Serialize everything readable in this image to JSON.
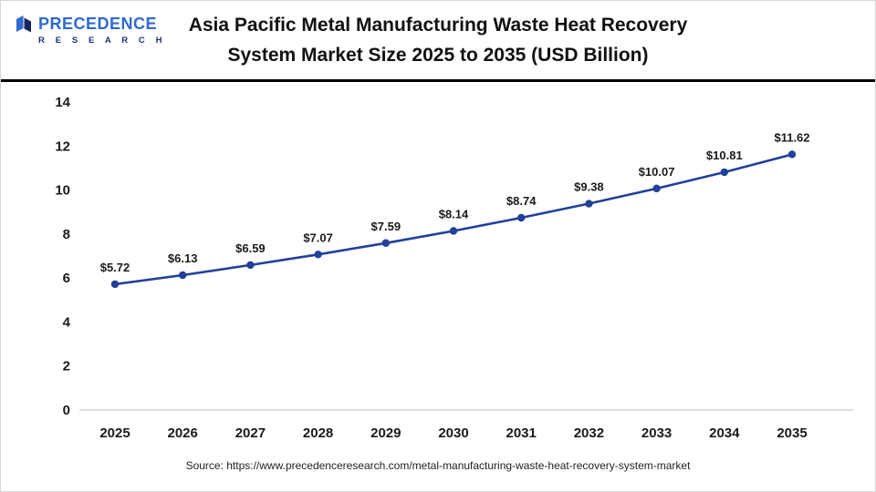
{
  "header": {
    "logo": {
      "name": "PRECEDENCE",
      "sub": "R E S E A R C H"
    },
    "title_line1": "Asia Pacific Metal Manufacturing Waste Heat Recovery",
    "title_line2": "System Market Size 2025 to 2035 (USD Billion)"
  },
  "chart_data": {
    "type": "line",
    "title": "Asia Pacific Metal Manufacturing Waste Heat Recovery System Market Size 2025 to 2035 (USD Billion)",
    "categories": [
      "2025",
      "2026",
      "2027",
      "2028",
      "2029",
      "2030",
      "2031",
      "2032",
      "2033",
      "2034",
      "2035"
    ],
    "values": [
      5.72,
      6.13,
      6.59,
      7.07,
      7.59,
      8.14,
      8.74,
      9.38,
      10.07,
      10.81,
      11.62
    ],
    "value_prefix": "$",
    "xlabel": "",
    "ylabel": "",
    "ylim": [
      0,
      14
    ],
    "yticks": [
      0,
      2,
      4,
      6,
      8,
      10,
      12,
      14
    ],
    "grid": false,
    "legend_position": "none",
    "line_color": "#21409a",
    "marker": "circle",
    "label_color": "#1a1a1a",
    "axis_color": "#bfbfbf"
  },
  "footer": {
    "source": "Source: https://www.precedenceresearch.com/metal-manufacturing-waste-heat-recovery-system-market"
  }
}
